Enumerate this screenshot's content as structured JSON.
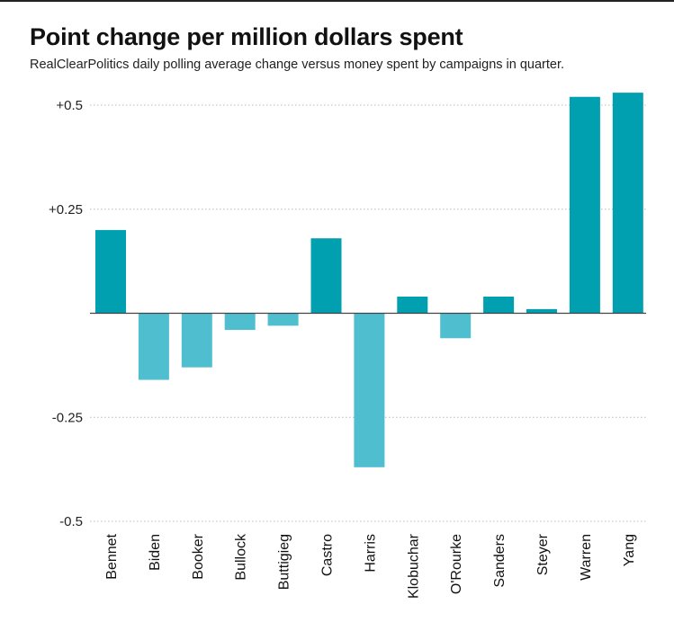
{
  "title": "Point change per million dollars spent",
  "subtitle": "RealClearPolitics daily polling average change versus money spent by campaigns in quarter.",
  "chart_data": {
    "type": "bar",
    "title": "Point change per million dollars spent",
    "subtitle": "RealClearPolitics daily polling average change versus money spent by campaigns in quarter.",
    "xlabel": "",
    "ylabel": "",
    "categories": [
      "Bennet",
      "Biden",
      "Booker",
      "Bullock",
      "Buttigieg",
      "Castro",
      "Harris",
      "Klobuchar",
      "O'Rourke",
      "Sanders",
      "Steyer",
      "Warren",
      "Yang"
    ],
    "values": [
      0.2,
      -0.16,
      -0.13,
      -0.04,
      -0.03,
      0.18,
      -0.37,
      0.04,
      -0.06,
      0.04,
      0.01,
      0.52,
      0.53
    ],
    "ylim": [
      -0.5,
      0.5
    ],
    "yticks": [
      0.5,
      0.25,
      -0.25,
      -0.5
    ],
    "ytick_labels": [
      "+0.5",
      "+0.25",
      "-0.25",
      "-0.5"
    ],
    "grid": "horizontal dotted",
    "colors": {
      "positive": "#00a0b0",
      "negative": "#4fbfcf",
      "zero_line": "#444444",
      "grid": "#bbbbbb"
    }
  }
}
